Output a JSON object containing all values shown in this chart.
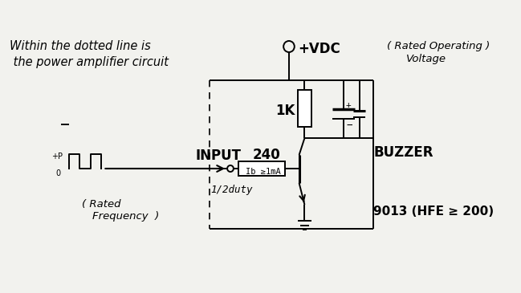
{
  "bg_color": "#f2f2ee",
  "line_color": "#000000",
  "title_line1": "Within the dotted line is",
  "title_line2": " the power amplifier circuit",
  "vdc_label": "+VDC",
  "rated_op": "（Rated Operating）",
  "rated_op2": "( Rated Operating )",
  "voltage": "Voltage",
  "resistor_label": "1K",
  "buzzer_label": "BUZZER",
  "transistor_label": "9013 (HFE ≥ 200)",
  "input_label": "INPUT",
  "r240_label": "240",
  "ib_label": "Ib ≥1mA",
  "duty_label": "1/2duty",
  "rated_freq1": "( Rated",
  "rated_freq2": "Frequency  )",
  "plus_p": "+P",
  "zero": "0"
}
